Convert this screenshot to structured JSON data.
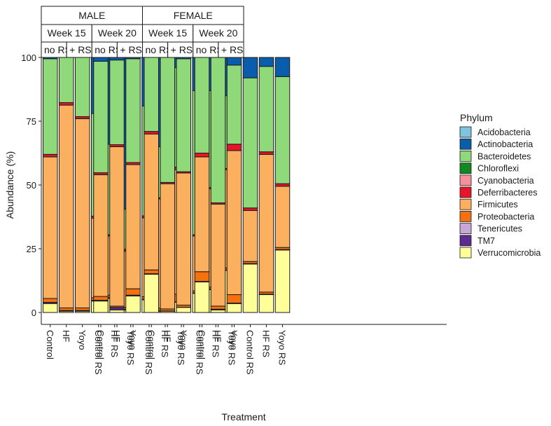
{
  "chart_data": {
    "type": "stacked-bar",
    "ylabel": "Abundance (%)",
    "xlabel": "Treatment",
    "ylim": [
      0,
      100
    ],
    "yticks": [
      0,
      25,
      50,
      75,
      100
    ],
    "legend": {
      "title": "Phylum",
      "position": "right",
      "entries": [
        "Acidobacteria",
        "Actinobacteria",
        "Bacteroidetes",
        "Chloroflexi",
        "Cyanobacteria",
        "Deferribacteres",
        "Firmicutes",
        "Proteobacteria",
        "Tenericutes",
        "TM7",
        "Verrucomicrobia"
      ]
    },
    "colors": {
      "Acidobacteria": "#7ec4de",
      "Actinobacteria": "#0a5dab",
      "Bacteroidetes": "#8fd97a",
      "Chloroflexi": "#0f8a1f",
      "Cyanobacteria": "#f7909b",
      "Deferribacteres": "#e8142b",
      "Firmicutes": "#fbb060",
      "Proteobacteria": "#f5700f",
      "Tenericutes": "#c8a6d6",
      "TM7": "#5c2c91",
      "Verrucomicrobia": "#ffff99"
    },
    "stack_order": [
      "Verrucomicrobia",
      "TM7",
      "Tenericutes",
      "Proteobacteria",
      "Firmicutes",
      "Deferribacteres",
      "Cyanobacteria",
      "Chloroflexi",
      "Bacteroidetes",
      "Actinobacteria",
      "Acidobacteria"
    ],
    "sex_labels": [
      "MALE",
      "FEMALE"
    ],
    "week_labels": [
      "Week 15",
      "Week 20"
    ],
    "rs_labels": [
      "no RS",
      "+ RS"
    ],
    "categories": [
      "Control",
      "HF",
      "Yoyo",
      "Control RS",
      "HF RS",
      "Yoyo RS"
    ],
    "groups": [
      {
        "sex": "MALE",
        "week": "Week 15",
        "bars": [
          {
            "Verrucomicrobia": 3.5,
            "TM7": 0.5,
            "Proteobacteria": 1.5,
            "Firmicutes": 55.5,
            "Deferribacteres": 1.0,
            "Bacteroidetes": 37.5,
            "Actinobacteria": 0.5
          },
          {
            "Verrucomicrobia": 0.5,
            "TM7": 0.3,
            "Proteobacteria": 1.0,
            "Firmicutes": 79.5,
            "Deferribacteres": 1.0,
            "Bacteroidetes": 17.7
          },
          {
            "Verrucomicrobia": 0.5,
            "TM7": 0.3,
            "Proteobacteria": 1.0,
            "Firmicutes": 74.2,
            "Deferribacteres": 0.8,
            "Bacteroidetes": 23.2
          },
          {
            "Verrucomicrobia": 4.5,
            "TM7": 0.3,
            "Proteobacteria": 1.0,
            "Firmicutes": 31.2,
            "Deferribacteres": 0.8,
            "Bacteroidetes": 40.2,
            "Actinobacteria": 22.0
          },
          {
            "Verrucomicrobia": 5.5,
            "TM7": 0.3,
            "Proteobacteria": 1.0,
            "Firmicutes": 23.2,
            "Deferribacteres": 0.5,
            "Bacteroidetes": 35.5,
            "Actinobacteria": 34.0
          },
          {
            "Verrucomicrobia": 1.0,
            "TM7": 0.2,
            "Proteobacteria": 0.8,
            "Firmicutes": 22.0,
            "Deferribacteres": 0.8,
            "Bacteroidetes": 15.7,
            "Actinobacteria": 59.5
          }
        ]
      },
      {
        "sex": "MALE",
        "week": "Week 20",
        "bars": [
          {
            "Verrucomicrobia": 4.5,
            "TM7": 0.3,
            "Proteobacteria": 1.5,
            "Firmicutes": 47.7,
            "Deferribacteres": 0.8,
            "Bacteroidetes": 43.7,
            "Actinobacteria": 1.5
          },
          {
            "Verrucomicrobia": 1.0,
            "TM7": 1.0,
            "Proteobacteria": 0.5,
            "Firmicutes": 62.5,
            "Deferribacteres": 0.8,
            "Bacteroidetes": 33.2,
            "Actinobacteria": 1.0
          },
          {
            "Verrucomicrobia": 6.5,
            "TM7": 0.3,
            "Proteobacteria": 2.5,
            "Firmicutes": 48.7,
            "Deferribacteres": 0.8,
            "Bacteroidetes": 40.7,
            "Actinobacteria": 0.5
          },
          {
            "Verrucomicrobia": 5.0,
            "TM7": 0.2,
            "Proteobacteria": 1.0,
            "Firmicutes": 30.9,
            "Deferribacteres": 0.8,
            "Bacteroidetes": 43.1,
            "Actinobacteria": 19.0
          },
          {
            "Verrucomicrobia": 0.5,
            "TM7": 0.2,
            "Proteobacteria": 1.0,
            "Firmicutes": 42.8,
            "Deferribacteres": 0.5,
            "Bacteroidetes": 20.0,
            "Actinobacteria": 35.0
          },
          {
            "Verrucomicrobia": 4.0,
            "TM7": 0.2,
            "Proteobacteria": 3.0,
            "Firmicutes": 48.8,
            "Deferribacteres": 1.0,
            "Bacteroidetes": 39.0,
            "Actinobacteria": 4.0
          }
        ]
      },
      {
        "sex": "FEMALE",
        "week": "Week 15",
        "bars": [
          {
            "Verrucomicrobia": 15.0,
            "TM7": 0.2,
            "Proteobacteria": 1.5,
            "Firmicutes": 53.3,
            "Deferribacteres": 1.0,
            "Bacteroidetes": 29.0
          },
          {
            "Verrucomicrobia": 0.5,
            "TM7": 0.1,
            "Proteobacteria": 0.8,
            "Firmicutes": 49.1,
            "Deferribacteres": 0.5,
            "Bacteroidetes": 49.0
          },
          {
            "Verrucomicrobia": 2.0,
            "TM7": 0.1,
            "Proteobacteria": 0.8,
            "Firmicutes": 51.8,
            "Deferribacteres": 0.5,
            "Bacteroidetes": 44.3,
            "Actinobacteria": 0.5
          },
          {
            "Verrucomicrobia": 7.5,
            "TM7": 0.2,
            "Proteobacteria": 0.8,
            "Firmicutes": 21.5,
            "Deferribacteres": 0.5,
            "Bacteroidetes": 56.5,
            "Actinobacteria": 13.0
          },
          {
            "Verrucomicrobia": 9.0,
            "TM7": 0.2,
            "Proteobacteria": 0.8,
            "Firmicutes": 38.5,
            "Deferribacteres": 0.5,
            "Bacteroidetes": 38.0,
            "Actinobacteria": 13.0
          },
          {
            "Verrucomicrobia": 16.5,
            "TM7": 0.2,
            "Proteobacteria": 0.8,
            "Firmicutes": 38.5,
            "Deferribacteres": 0.5,
            "Bacteroidetes": 28.5,
            "Actinobacteria": 15.0
          }
        ]
      },
      {
        "sex": "FEMALE",
        "week": "Week 20",
        "bars": [
          {
            "Verrucomicrobia": 12.0,
            "TM7": 0.2,
            "Proteobacteria": 3.8,
            "Firmicutes": 45.0,
            "Deferribacteres": 1.5,
            "Bacteroidetes": 37.5
          },
          {
            "Verrucomicrobia": 1.0,
            "TM7": 0.3,
            "Proteobacteria": 1.2,
            "Firmicutes": 40.0,
            "Deferribacteres": 0.5,
            "Bacteroidetes": 57.0
          },
          {
            "Verrucomicrobia": 3.5,
            "TM7": 0.2,
            "Proteobacteria": 3.3,
            "Firmicutes": 56.5,
            "Deferribacteres": 2.5,
            "Bacteroidetes": 31.0,
            "Actinobacteria": 3.0
          },
          {
            "Verrucomicrobia": 19.0,
            "TM7": 0.2,
            "Proteobacteria": 0.8,
            "Firmicutes": 20.0,
            "Deferribacteres": 1.0,
            "Bacteroidetes": 51.0,
            "Actinobacteria": 8.0
          },
          {
            "Verrucomicrobia": 7.0,
            "TM7": 0.2,
            "Proteobacteria": 0.8,
            "Firmicutes": 54.0,
            "Deferribacteres": 1.0,
            "Bacteroidetes": 33.5,
            "Actinobacteria": 3.5
          },
          {
            "Verrucomicrobia": 24.5,
            "TM7": 0.2,
            "Proteobacteria": 0.8,
            "Firmicutes": 24.0,
            "Deferribacteres": 1.0,
            "Bacteroidetes": 42.0,
            "Actinobacteria": 7.5
          }
        ]
      }
    ]
  }
}
